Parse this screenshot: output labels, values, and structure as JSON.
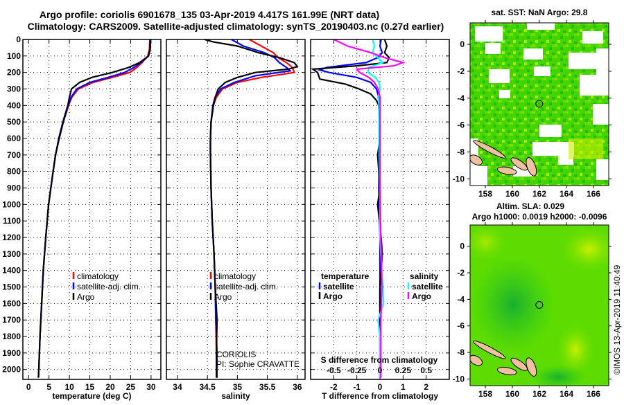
{
  "title_line1": "Argo profile: coriolis 6901678_135 03-Apr-2019 4.417S 161.99E (NRT data)",
  "title_line2": "Climatology: CARS2009. Satellite-adjusted climatology: synTS_20190403.nc (0.27d earlier)",
  "credit": "CORIOLIS",
  "pi": "PI: Sophie CRAVATTE",
  "imos_stamp": "©IMOS 13-Apr-2019 11:40:49",
  "colors": {
    "climatology": "#ff0000",
    "satellite": "#0000ff",
    "argo": "#000000",
    "sal_satellite": "#00ffff",
    "sal_argo": "#ff00ff"
  },
  "chart_data": [
    {
      "type": "line",
      "id": "temperature",
      "xlabel": "temperature (deg C)",
      "ylabel": "depth",
      "xlim": [
        -1.4,
        32.4
      ],
      "ylim": [
        2060,
        0
      ],
      "xticks": [
        "0",
        "5",
        "10",
        "15",
        "20",
        "25",
        "30"
      ],
      "xtick_values": [
        0,
        5,
        10,
        15,
        20,
        25,
        30
      ],
      "yticks": [
        "0",
        "100",
        "200",
        "300",
        "400",
        "500",
        "600",
        "700",
        "800",
        "900",
        "1000",
        "1100",
        "1200",
        "1300",
        "1400",
        "1500",
        "1600",
        "1700",
        "1800",
        "1900",
        "2000"
      ],
      "grid": true,
      "legend": [
        "climatology",
        "satellite-adj. clim.",
        "Argo"
      ],
      "series": [
        {
          "name": "climatology",
          "color": "#ff0000",
          "depth": [
            0,
            60,
            100,
            140,
            170,
            200,
            230,
            260,
            300,
            350,
            400,
            500,
            600,
            700,
            800,
            1000,
            1200,
            1400,
            1600,
            1800,
            2000,
            2050
          ],
          "values": [
            29.7,
            29.6,
            29.2,
            27.8,
            26.5,
            24.8,
            20.5,
            15.8,
            12.2,
            10.6,
            9.8,
            8.5,
            7.5,
            6.6,
            6.0,
            4.9,
            4.2,
            3.6,
            3.2,
            2.8,
            2.5,
            2.4
          ]
        },
        {
          "name": "satellite-adj. clim.",
          "color": "#0000ff",
          "depth": [
            0,
            60,
            100,
            140,
            170,
            200,
            230,
            260,
            300,
            350,
            400,
            500,
            600,
            700,
            800,
            1000,
            1200,
            1400,
            1600,
            1800,
            2000,
            2050
          ],
          "values": [
            29.9,
            29.8,
            29.4,
            27.5,
            25.8,
            23.5,
            19.5,
            15.0,
            11.8,
            10.4,
            9.7,
            8.5,
            7.5,
            6.6,
            6.0,
            4.9,
            4.2,
            3.6,
            3.2,
            2.8,
            2.5,
            2.4
          ]
        },
        {
          "name": "Argo",
          "color": "#000000",
          "depth": [
            0,
            60,
            100,
            140,
            170,
            200,
            230,
            260,
            300,
            350,
            400,
            500,
            600,
            700,
            800,
            1000,
            1200,
            1400,
            1600,
            1800,
            2000,
            2050
          ],
          "values": [
            29.8,
            29.7,
            29.4,
            27.2,
            24.5,
            20.5,
            15.5,
            12.5,
            10.5,
            10.0,
            9.6,
            8.4,
            7.4,
            6.6,
            6.0,
            4.9,
            4.2,
            3.6,
            3.2,
            2.8,
            2.5,
            2.4
          ]
        }
      ]
    },
    {
      "type": "line",
      "id": "salinity",
      "xlabel": "salinity",
      "xlim": [
        33.815,
        36.13
      ],
      "ylim": [
        2060,
        0
      ],
      "xticks": [
        "34",
        "34.5",
        "35",
        "35.5",
        "36"
      ],
      "xtick_values": [
        34,
        34.5,
        35,
        35.5,
        36
      ],
      "grid": true,
      "legend": [
        "climatology",
        "satellite-adj. clim.",
        "Argo"
      ],
      "series": [
        {
          "name": "climatology",
          "color": "#ff0000",
          "depth": [
            0,
            40,
            80,
            110,
            140,
            170,
            200,
            230,
            260,
            300,
            350,
            400,
            500,
            600,
            700,
            900,
            1100,
            1300,
            1500,
            1700,
            1900,
            2050
          ],
          "values": [
            35.2,
            35.4,
            35.6,
            35.68,
            35.82,
            35.92,
            35.95,
            35.4,
            35.0,
            34.75,
            34.65,
            34.6,
            34.56,
            34.55,
            34.55,
            34.56,
            34.58,
            34.61,
            34.63,
            34.64,
            34.65,
            34.65
          ]
        },
        {
          "name": "satellite-adj. clim.",
          "color": "#0000ff",
          "depth": [
            0,
            40,
            80,
            110,
            140,
            170,
            190,
            220,
            260,
            300,
            350,
            400,
            500,
            600,
            700,
            900,
            1100,
            1300,
            1500,
            1700,
            1900,
            2050
          ],
          "values": [
            34.9,
            35.1,
            35.45,
            35.62,
            35.7,
            35.82,
            35.88,
            35.3,
            34.95,
            34.72,
            34.63,
            34.59,
            34.56,
            34.55,
            34.55,
            34.56,
            34.58,
            34.61,
            34.63,
            34.64,
            34.66,
            34.66
          ]
        },
        {
          "name": "Argo",
          "color": "#000000",
          "depth": [
            0,
            15,
            40,
            80,
            110,
            140,
            165,
            180,
            200,
            230,
            260,
            300,
            350,
            400,
            500,
            600,
            700,
            900,
            1100,
            1300,
            1500,
            1700,
            1900,
            2050
          ],
          "values": [
            34.45,
            34.6,
            35.0,
            35.35,
            35.7,
            35.95,
            36.0,
            35.85,
            35.3,
            35.0,
            34.8,
            34.68,
            34.63,
            34.6,
            34.56,
            34.55,
            34.55,
            34.56,
            34.58,
            34.61,
            34.63,
            34.66,
            34.65,
            34.65
          ]
        }
      ]
    },
    {
      "type": "line",
      "id": "difference",
      "xlabel": "T difference from climatology",
      "xlim": [
        -3,
        3
      ],
      "ylim": [
        2060,
        0
      ],
      "xticks": [
        "-2",
        "-1",
        "0",
        "1",
        "2"
      ],
      "xtick_values": [
        -2,
        -1,
        0,
        1,
        2
      ],
      "s_axis_label": "S difference from climatology",
      "s_xticks": [
        "-0.5",
        "-0.25",
        "0",
        "0.25",
        "0.5"
      ],
      "s_xtick_values": [
        -0.5,
        -0.25,
        0,
        0.25,
        0.5
      ],
      "s_to_t_factor": 4,
      "grid": true,
      "legend_temperature": {
        "heading": "temperature",
        "items": [
          "satellite",
          "Argo"
        ]
      },
      "legend_salinity": {
        "heading": "salinity",
        "items": [
          "satellite",
          "Argo"
        ]
      },
      "series": [
        {
          "name": "temperature satellite",
          "color": "#0000ff",
          "unit": "T",
          "depth": [
            0,
            40,
            80,
            110,
            140,
            170,
            185,
            200,
            230,
            260,
            300,
            350,
            400,
            600,
            900,
            1200,
            1500,
            1800,
            2050
          ],
          "values": [
            0.05,
            0.0,
            0.1,
            -0.1,
            -0.6,
            -2.3,
            -2.6,
            -2.2,
            -1.0,
            -0.4,
            -0.15,
            -0.05,
            0,
            -0.03,
            -0.05,
            0,
            0,
            0,
            0
          ]
        },
        {
          "name": "temperature Argo",
          "color": "#000000",
          "unit": "T",
          "depth": [
            0,
            40,
            80,
            110,
            140,
            160,
            180,
            200,
            240,
            270,
            300,
            330,
            370,
            400,
            600,
            700,
            900,
            1000,
            1200,
            1300,
            1500,
            1800,
            2050
          ],
          "values": [
            0.2,
            0.3,
            0.2,
            0.4,
            0.3,
            -1.0,
            -2.9,
            -2.7,
            -2.6,
            -1.5,
            -0.9,
            -0.4,
            -0.15,
            -0.05,
            0,
            -0.1,
            0,
            -0.1,
            0.05,
            0.1,
            0,
            0,
            0
          ]
        },
        {
          "name": "salinity satellite",
          "color": "#00ffff",
          "unit": "S",
          "depth": [
            0,
            40,
            80,
            110,
            140,
            170,
            200,
            230,
            260,
            300,
            350,
            400,
            600,
            900,
            1200,
            1500,
            1600,
            1700,
            1800,
            2050
          ],
          "values": [
            -0.08,
            -0.06,
            -0.08,
            -0.02,
            0.03,
            -0.12,
            -0.13,
            -0.05,
            -0.01,
            0.0,
            -0.02,
            -0.01,
            -0.01,
            0,
            0.0,
            0.03,
            0.04,
            -0.02,
            0,
            0
          ]
        },
        {
          "name": "salinity Argo",
          "color": "#ff00ff",
          "unit": "S",
          "depth": [
            0,
            40,
            80,
            110,
            140,
            160,
            180,
            200,
            230,
            260,
            300,
            350,
            400,
            600,
            900,
            1200,
            1500,
            1700,
            1800,
            2050
          ],
          "values": [
            -0.5,
            -0.35,
            -0.1,
            0.05,
            0.25,
            0.15,
            -0.25,
            -0.22,
            -0.12,
            -0.06,
            -0.02,
            0,
            0,
            0,
            0,
            0.01,
            0.02,
            0.01,
            0.01,
            0.01
          ]
        }
      ]
    },
    {
      "type": "heatmap",
      "id": "sst_map",
      "title": "sat. SST: NaN Argo: 29.8",
      "xlim": [
        156.87,
        167.13
      ],
      "ylim": [
        -10.5,
        1.6
      ],
      "xticks": [
        "158",
        "160",
        "162",
        "164",
        "166"
      ],
      "xtick_values": [
        158,
        160,
        162,
        164,
        166
      ],
      "yticks": [
        "0",
        "-2",
        "-4",
        "-6",
        "-8",
        "-10"
      ],
      "ytick_values": [
        0,
        -2,
        -4,
        -6,
        -8,
        -10
      ],
      "argo_position": {
        "lon": 161.99,
        "lat": -4.417
      }
    },
    {
      "type": "heatmap",
      "id": "sla_map",
      "title": "Altim. SLA: 0.029",
      "subtitle": "Argo h1000: 0.0019 h2000: -0.0096",
      "xlim": [
        156.87,
        167.13
      ],
      "ylim": [
        -10.5,
        1.6
      ],
      "xticks": [
        "158",
        "160",
        "162",
        "164",
        "166"
      ],
      "xtick_values": [
        158,
        160,
        162,
        164,
        166
      ],
      "yticks": [
        "0",
        "-2",
        "-4",
        "-6",
        "-8",
        "-10"
      ],
      "ytick_values": [
        0,
        -2,
        -4,
        -6,
        -8,
        -10
      ],
      "argo_position": {
        "lon": 161.99,
        "lat": -4.417
      }
    }
  ]
}
